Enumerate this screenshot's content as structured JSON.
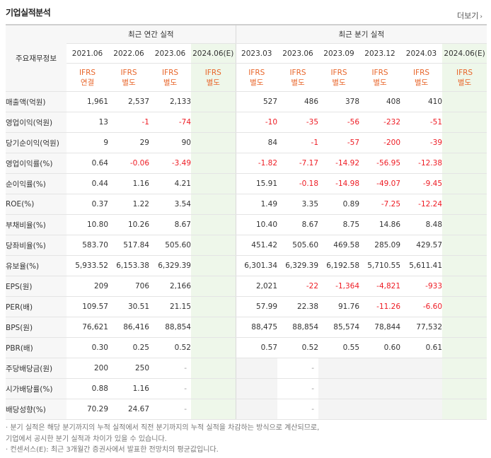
{
  "section_title": "기업실적분석",
  "more_label": "더보기",
  "more_icon": "chevron-right-icon",
  "label_header": "주요재무정보",
  "group_headers": {
    "annual": "최근 연간 실적",
    "quarter": "최근 분기 실적"
  },
  "periods": [
    "2021.06",
    "2022.06",
    "2023.06",
    "2024.06(E)",
    "2023.03",
    "2023.06",
    "2023.09",
    "2023.12",
    "2024.03",
    "2024.06(E)"
  ],
  "standards": [
    [
      "IFRS",
      "연결"
    ],
    [
      "IFRS",
      "별도"
    ],
    [
      "IFRS",
      "별도"
    ],
    [
      "IFRS",
      "별도"
    ],
    [
      "IFRS",
      "별도"
    ],
    [
      "IFRS",
      "별도"
    ],
    [
      "IFRS",
      "별도"
    ],
    [
      "IFRS",
      "별도"
    ],
    [
      "IFRS",
      "별도"
    ],
    [
      "IFRS",
      "별도"
    ]
  ],
  "colors": {
    "negative": "#ee1c24",
    "standard": "#e8662b",
    "estimate_bg": "#eef7ea",
    "label_bg": "#f7f7f7"
  },
  "rows": [
    {
      "label": "매출액(억원)",
      "values": [
        "1,961",
        "2,537",
        "2,133",
        "",
        "527",
        "486",
        "378",
        "408",
        "410",
        ""
      ]
    },
    {
      "label": "영업이익(억원)",
      "values": [
        "13",
        "-1",
        "-74",
        "",
        "-10",
        "-35",
        "-56",
        "-232",
        "-51",
        ""
      ]
    },
    {
      "label": "당기순이익(억원)",
      "values": [
        "9",
        "29",
        "90",
        "",
        "84",
        "-1",
        "-57",
        "-200",
        "-39",
        ""
      ]
    },
    {
      "label": "영업이익률(%)",
      "values": [
        "0.64",
        "-0.06",
        "-3.49",
        "",
        "-1.82",
        "-7.17",
        "-14.92",
        "-56.95",
        "-12.38",
        ""
      ]
    },
    {
      "label": "순이익률(%)",
      "values": [
        "0.44",
        "1.16",
        "4.21",
        "",
        "15.91",
        "-0.18",
        "-14.98",
        "-49.07",
        "-9.45",
        ""
      ]
    },
    {
      "label": "ROE(%)",
      "values": [
        "0.37",
        "1.22",
        "3.54",
        "",
        "1.49",
        "3.35",
        "0.89",
        "-7.25",
        "-12.24",
        ""
      ]
    },
    {
      "label": "부채비율(%)",
      "values": [
        "10.80",
        "10.26",
        "8.67",
        "",
        "10.40",
        "8.67",
        "8.75",
        "14.86",
        "8.48",
        ""
      ]
    },
    {
      "label": "당좌비율(%)",
      "values": [
        "583.70",
        "517.84",
        "505.60",
        "",
        "451.42",
        "505.60",
        "469.58",
        "285.09",
        "429.57",
        ""
      ]
    },
    {
      "label": "유보율(%)",
      "values": [
        "5,933.52",
        "6,153.38",
        "6,329.39",
        "",
        "6,301.34",
        "6,329.39",
        "6,192.58",
        "5,710.55",
        "5,611.41",
        ""
      ]
    },
    {
      "label": "EPS(원)",
      "values": [
        "209",
        "706",
        "2,166",
        "",
        "2,021",
        "-22",
        "-1,364",
        "-4,821",
        "-933",
        ""
      ]
    },
    {
      "label": "PER(배)",
      "values": [
        "109.57",
        "30.51",
        "21.15",
        "",
        "57.99",
        "22.38",
        "91.76",
        "-11.26",
        "-6.60",
        ""
      ]
    },
    {
      "label": "BPS(원)",
      "values": [
        "76,621",
        "86,416",
        "88,854",
        "",
        "88,475",
        "88,854",
        "85,574",
        "78,844",
        "77,532",
        ""
      ]
    },
    {
      "label": "PBR(배)",
      "values": [
        "0.30",
        "0.25",
        "0.52",
        "",
        "0.57",
        "0.52",
        "0.55",
        "0.60",
        "0.61",
        ""
      ]
    },
    {
      "label": "주당배당금(원)",
      "values": [
        "200",
        "250",
        "-",
        "",
        "",
        "-",
        "",
        "",
        "",
        ""
      ]
    },
    {
      "label": "시가배당률(%)",
      "values": [
        "0.88",
        "1.16",
        "-",
        "",
        "",
        "-",
        "",
        "",
        "",
        ""
      ]
    },
    {
      "label": "배당성향(%)",
      "values": [
        "70.29",
        "24.67",
        "-",
        "",
        "",
        "-",
        "",
        "",
        "",
        ""
      ]
    }
  ],
  "notes": [
    "· 분기 실적은 해당 분기까지의 누적 실적에서 직전 분기까지의 누적 실적을 차감하는 방식으로 계산되므로,",
    "  기업에서 공시한 분기 실적과 차이가 있을 수 있습니다.",
    "· 컨센서스(E): 최근 3개월간 증권사에서 발표한 전망치의 평균값입니다."
  ]
}
